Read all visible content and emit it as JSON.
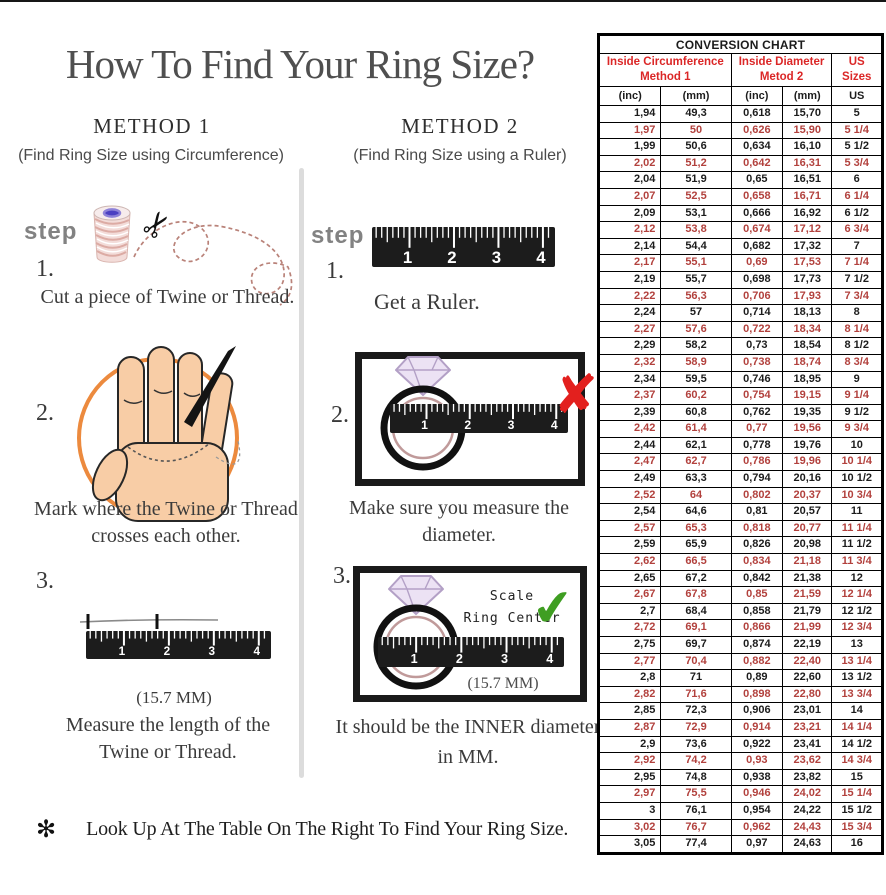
{
  "title": "How To Find Your Ring Size?",
  "colors": {
    "header_red": "#db2727",
    "row_red": "#b2413d",
    "x_red": "#e3201e",
    "check_green": "#3f9e22",
    "circle_orange": "#ec8a3e"
  },
  "icons": {
    "scissors": "✂",
    "x_mark": "✘",
    "check_mark": "✔",
    "asterisk": "✻"
  },
  "ruler_numbers": [
    "1",
    "2",
    "3",
    "4"
  ],
  "methods": {
    "method1": {
      "heading": "METHOD 1",
      "subheading": "(Find Ring Size using Circumference)",
      "step_label": "step",
      "step1_num": "1.",
      "step1_caption": "Cut a piece of  Twine or Thread.",
      "step2_num": "2.",
      "step2_caption_line1": "Mark where the Twine or Thread",
      "step2_caption_line2": "crosses each other.",
      "step3_num": "3.",
      "step3_measure": "(15.7 MM)",
      "step3_caption_line1": "Measure the length of the",
      "step3_caption_line2": "Twine or Thread."
    },
    "method2": {
      "heading": "METHOD 2",
      "subheading": "(Find Ring Size using a Ruler)",
      "step_label": "step",
      "step1_num": "1.",
      "step1_caption": "Get a Ruler.",
      "step2_num": "2.",
      "step2_caption": "Make sure you measure the diameter.",
      "step3_num": "3.",
      "scale_note_line1": "Scale",
      "scale_note_line2": "Ring Center",
      "step3_measure": "(15.7 MM)",
      "step3_caption_line1": "It should be the INNER diameter",
      "step3_caption_line2": "in MM."
    }
  },
  "footnote": {
    "bullet": "✻",
    "text": "Look Up At The Table On The Right To Find Your Ring Size."
  },
  "table": {
    "title": "CONVERSION CHART",
    "group_headers": [
      {
        "line1": "Inside Circumference",
        "line2": "Method 1"
      },
      {
        "line1": "Inside Diameter",
        "line2": "Metod 2"
      },
      {
        "line1": "US Sizes",
        "line2": ""
      }
    ],
    "unit_headers": [
      "(inc)",
      "(mm)",
      "(inc)",
      "(mm)",
      "US"
    ],
    "rows": [
      [
        "1,94",
        "49,3",
        "0,618",
        "15,70",
        "5"
      ],
      [
        "1,97",
        "50",
        "0,626",
        "15,90",
        "5 1/4"
      ],
      [
        "1,99",
        "50,6",
        "0,634",
        "16,10",
        "5 1/2"
      ],
      [
        "2,02",
        "51,2",
        "0,642",
        "16,31",
        "5 3/4"
      ],
      [
        "2,04",
        "51,9",
        "0,65",
        "16,51",
        "6"
      ],
      [
        "2,07",
        "52,5",
        "0,658",
        "16,71",
        "6 1/4"
      ],
      [
        "2,09",
        "53,1",
        "0,666",
        "16,92",
        "6 1/2"
      ],
      [
        "2,12",
        "53,8",
        "0,674",
        "17,12",
        "6 3/4"
      ],
      [
        "2,14",
        "54,4",
        "0,682",
        "17,32",
        "7"
      ],
      [
        "2,17",
        "55,1",
        "0,69",
        "17,53",
        "7 1/4"
      ],
      [
        "2,19",
        "55,7",
        "0,698",
        "17,73",
        "7 1/2"
      ],
      [
        "2,22",
        "56,3",
        "0,706",
        "17,93",
        "7 3/4"
      ],
      [
        "2,24",
        "57",
        "0,714",
        "18,13",
        "8"
      ],
      [
        "2,27",
        "57,6",
        "0,722",
        "18,34",
        "8 1/4"
      ],
      [
        "2,29",
        "58,2",
        "0,73",
        "18,54",
        "8 1/2"
      ],
      [
        "2,32",
        "58,9",
        "0,738",
        "18,74",
        "8 3/4"
      ],
      [
        "2,34",
        "59,5",
        "0,746",
        "18,95",
        "9"
      ],
      [
        "2,37",
        "60,2",
        "0,754",
        "19,15",
        "9 1/4"
      ],
      [
        "2,39",
        "60,8",
        "0,762",
        "19,35",
        "9 1/2"
      ],
      [
        "2,42",
        "61,4",
        "0,77",
        "19,56",
        "9 3/4"
      ],
      [
        "2,44",
        "62,1",
        "0,778",
        "19,76",
        "10"
      ],
      [
        "2,47",
        "62,7",
        "0,786",
        "19,96",
        "10 1/4"
      ],
      [
        "2,49",
        "63,3",
        "0,794",
        "20,16",
        "10 1/2"
      ],
      [
        "2,52",
        "64",
        "0,802",
        "20,37",
        "10 3/4"
      ],
      [
        "2,54",
        "64,6",
        "0,81",
        "20,57",
        "11"
      ],
      [
        "2,57",
        "65,3",
        "0,818",
        "20,77",
        "11 1/4"
      ],
      [
        "2,59",
        "65,9",
        "0,826",
        "20,98",
        "11 1/2"
      ],
      [
        "2,62",
        "66,5",
        "0,834",
        "21,18",
        "11 3/4"
      ],
      [
        "2,65",
        "67,2",
        "0,842",
        "21,38",
        "12"
      ],
      [
        "2,67",
        "67,8",
        "0,85",
        "21,59",
        "12 1/4"
      ],
      [
        "2,7",
        "68,4",
        "0,858",
        "21,79",
        "12 1/2"
      ],
      [
        "2,72",
        "69,1",
        "0,866",
        "21,99",
        "12 3/4"
      ],
      [
        "2,75",
        "69,7",
        "0,874",
        "22,19",
        "13"
      ],
      [
        "2,77",
        "70,4",
        "0,882",
        "22,40",
        "13 1/4"
      ],
      [
        "2,8",
        "71",
        "0,89",
        "22,60",
        "13 1/2"
      ],
      [
        "2,82",
        "71,6",
        "0,898",
        "22,80",
        "13 3/4"
      ],
      [
        "2,85",
        "72,3",
        "0,906",
        "23,01",
        "14"
      ],
      [
        "2,87",
        "72,9",
        "0,914",
        "23,21",
        "14 1/4"
      ],
      [
        "2,9",
        "73,6",
        "0,922",
        "23,41",
        "14 1/2"
      ],
      [
        "2,92",
        "74,2",
        "0,93",
        "23,62",
        "14 3/4"
      ],
      [
        "2,95",
        "74,8",
        "0,938",
        "23,82",
        "15"
      ],
      [
        "2,97",
        "75,5",
        "0,946",
        "24,02",
        "15 1/4"
      ],
      [
        "3",
        "76,1",
        "0,954",
        "24,22",
        "15 1/2"
      ],
      [
        "3,02",
        "76,7",
        "0,962",
        "24,43",
        "15 3/4"
      ],
      [
        "3,05",
        "77,4",
        "0,97",
        "24,63",
        "16"
      ]
    ]
  }
}
